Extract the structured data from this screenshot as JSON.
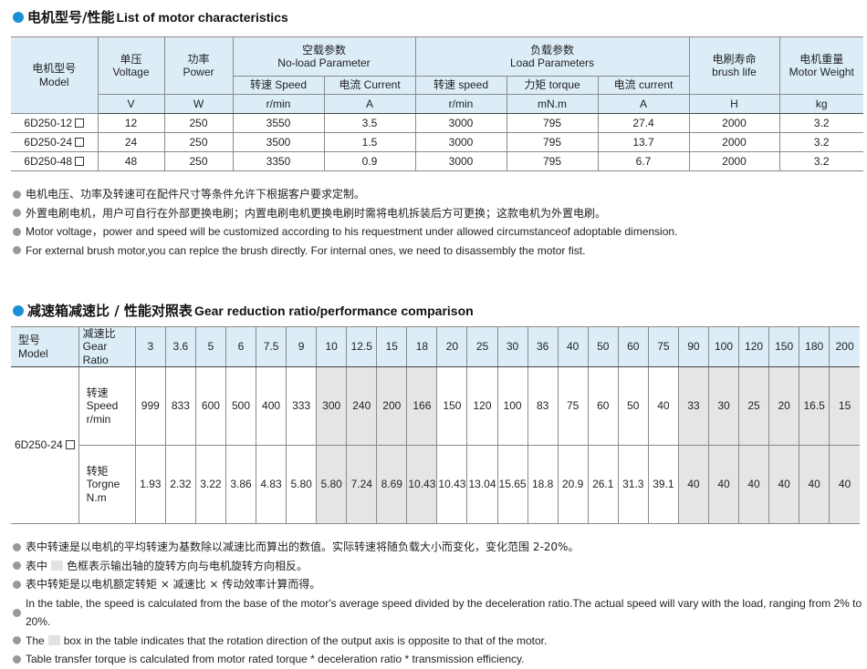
{
  "section1": {
    "title_cn": "电机型号/性能",
    "title_en": "List of motor characteristics",
    "headers": {
      "model_cn": "电机型号",
      "model_en": "Model",
      "voltage_cn": "单压",
      "voltage_en": "Voltage",
      "power_cn": "功率",
      "power_en": "Power",
      "noload_cn": "空载参数",
      "noload_en": "No-load Parameter",
      "load_cn": "负载参数",
      "load_en": "Load Parameters",
      "brush_cn": "电刷寿命",
      "brush_en": "brush life",
      "weight_cn": "电机重量",
      "weight_en": "Motor Weight",
      "nl_speed": "转速 Speed",
      "nl_current": "电流 Current",
      "l_speed": "转速 speed",
      "l_torque": "力矩 torque",
      "l_current": "电流 current"
    },
    "units": [
      "V",
      "W",
      "r/min",
      "A",
      "r/min",
      "mN.m",
      "A",
      "H",
      "kg"
    ],
    "rows": [
      {
        "model": "6D250-12",
        "cells": [
          "12",
          "250",
          "3550",
          "3.5",
          "3000",
          "795",
          "27.4",
          "2000",
          "3.2"
        ]
      },
      {
        "model": "6D250-24",
        "cells": [
          "24",
          "250",
          "3500",
          "1.5",
          "3000",
          "795",
          "13.7",
          "2000",
          "3.2"
        ]
      },
      {
        "model": "6D250-48",
        "cells": [
          "48",
          "250",
          "3350",
          "0.9",
          "3000",
          "795",
          "6.7",
          "2000",
          "3.2"
        ]
      }
    ],
    "notes": [
      "电机电压、功率及转速可在配件尺寸等条件允许下根据客户要求定制。",
      "外置电刷电机，用户可自行在外部更换电刷；内置电刷电机更换电刷时需将电机拆装后方可更换；这款电机为外置电刷。",
      "Motor voltage，power and speed will be customized according to his requestment under allowed circumstanceof adoptable dimension.",
      "For external brush motor,you can replce the brush directly. For internal ones, we need to disassembly the motor fist."
    ]
  },
  "section2": {
    "title_cn": "减速箱减速比 / 性能对照表",
    "title_en": "Gear reduction ratio/performance comparison",
    "model_cn": "型号",
    "model_en": "Model",
    "ratio_cn": "减速比",
    "ratio_en": "Gear Ratio",
    "model": "6D250-24",
    "speed_label": [
      "转速",
      "Speed",
      "r/min"
    ],
    "torque_label": [
      "转矩",
      "Torgne",
      "N.m"
    ],
    "ratios": [
      "3",
      "3.6",
      "5",
      "6",
      "7.5",
      "9",
      "10",
      "12.5",
      "15",
      "18",
      "20",
      "25",
      "30",
      "36",
      "40",
      "50",
      "60",
      "75",
      "90",
      "100",
      "120",
      "150",
      "180",
      "200"
    ],
    "speed": [
      "999",
      "833",
      "600",
      "500",
      "400",
      "333",
      "300",
      "240",
      "200",
      "166",
      "150",
      "120",
      "100",
      "83",
      "75",
      "60",
      "50",
      "40",
      "33",
      "30",
      "25",
      "20",
      "16.5",
      "15"
    ],
    "torque": [
      "1.93",
      "2.32",
      "3.22",
      "3.86",
      "4.83",
      "5.80",
      "5.80",
      "7.24",
      "8.69",
      "10.43",
      "10.43",
      "13.04",
      "15.65",
      "18.8",
      "20.9",
      "26.1",
      "31.3",
      "39.1",
      "40",
      "40",
      "40",
      "40",
      "40",
      "40"
    ],
    "shaded": [
      false,
      false,
      false,
      false,
      false,
      false,
      true,
      true,
      true,
      true,
      false,
      false,
      false,
      false,
      false,
      false,
      false,
      false,
      true,
      true,
      true,
      true,
      true,
      true
    ],
    "shade_color": "#e5e5e5",
    "notes_cn": [
      "表中转速是以电机的平均转速为基数除以减速比而算出的数值。实际转速将随负载大小而变化，变化范围 2-20%。",
      [
        "表中",
        "色框表示输出轴的旋转方向与电机旋转方向相反。"
      ],
      "表中转矩是以电机额定转矩 × 减速比 × 传动效率计算而得。"
    ],
    "notes_en": [
      "In the table, the speed is calculated from the base of the motor's average speed  divided by the deceleration ratio.The actual speed will vary with the load, ranging from 2% to 20%.",
      [
        "The",
        "box in the table indicates that the rotation direction of the output axis is opposite to that of the motor."
      ],
      "Table transfer torque is calculated from motor rated torque * deceleration ratio * transmission efficiency."
    ]
  },
  "colors": {
    "accent": "#1a8fd8",
    "header_bg": "#dcedf8"
  }
}
